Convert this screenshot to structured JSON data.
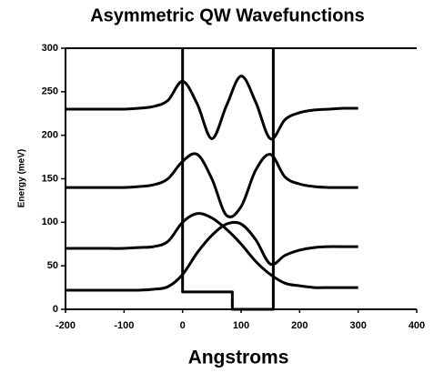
{
  "chart_data": {
    "type": "line",
    "title": "Asymmetric QW Wavefunctions",
    "xlabel": "Angstroms",
    "ylabel": "Energy (meV)",
    "x": [
      -200,
      -175,
      -150,
      -125,
      -100,
      -75,
      -50,
      -25,
      0,
      25,
      50,
      75,
      100,
      125,
      150,
      175,
      200,
      225,
      250,
      275,
      300
    ],
    "series": [
      {
        "color": "#000000",
        "values": [
          230,
          230,
          230,
          230,
          230,
          231,
          233,
          240,
          262,
          236,
          196,
          234,
          268,
          238,
          196,
          218,
          226,
          229,
          230,
          231,
          231
        ]
      },
      {
        "color": "#000000",
        "values": [
          140,
          140,
          140,
          140,
          140,
          141,
          143,
          150,
          170,
          178,
          150,
          108,
          118,
          160,
          178,
          152,
          144,
          141,
          140,
          140,
          140
        ]
      },
      {
        "color": "#000000",
        "values": [
          70,
          70,
          70,
          70,
          70,
          71,
          72,
          78,
          100,
          110,
          105,
          92,
          75,
          55,
          40,
          30,
          27,
          25,
          25,
          25,
          25
        ]
      },
      {
        "color": "#000000",
        "values": [
          22,
          22,
          22,
          22,
          22,
          22,
          23,
          26,
          40,
          65,
          85,
          98,
          98,
          80,
          52,
          62,
          68,
          71,
          72,
          72,
          72
        ]
      },
      {
        "color": "#000000",
        "x": [
          0,
          0,
          85,
          85,
          155,
          155
        ],
        "values": [
          300,
          20,
          20,
          0,
          0,
          300
        ]
      }
    ],
    "xlim": [
      -200,
      400
    ],
    "ylim": [
      0,
      300
    ],
    "xticks": [
      -200,
      -100,
      0,
      100,
      200,
      300,
      400
    ],
    "yticks": [
      0,
      50,
      100,
      150,
      200,
      250,
      300
    ]
  }
}
